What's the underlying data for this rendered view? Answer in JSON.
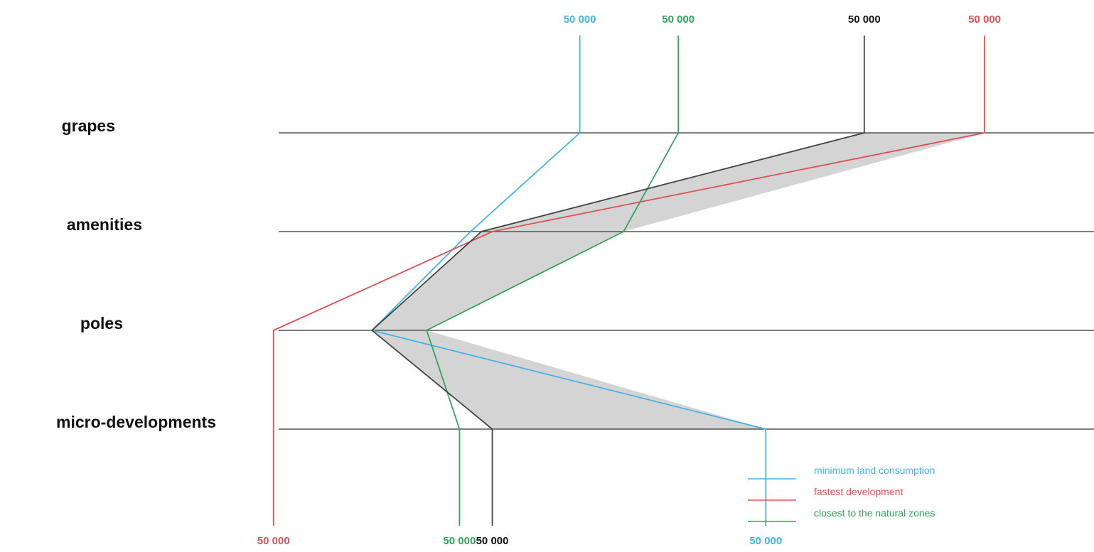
{
  "chart_data": {
    "type": "line",
    "title": "",
    "rows": [
      "grapes",
      "amenities",
      "poles",
      "micro-developments"
    ],
    "series": [
      {
        "name": "minimum land consumption",
        "key": "blue",
        "color": "#3fb6e6",
        "top_label": "50 000",
        "bottom_label": "50 000",
        "values": [
          0.53,
          0.43,
          0.34,
          0.7
        ]
      },
      {
        "name": "fastest development",
        "key": "red",
        "color": "#e05055",
        "top_label": "50 000",
        "bottom_label": "50 000",
        "values": [
          0.9,
          0.45,
          0.25,
          0.25
        ]
      },
      {
        "name": "closest to the natural zones",
        "key": "green",
        "color": "#2fa65a",
        "top_label": "50 000",
        "bottom_label": "50 000",
        "values": [
          0.62,
          0.57,
          0.39,
          0.42
        ]
      },
      {
        "name": "",
        "key": "black",
        "color": "#444444",
        "top_label": "50 000",
        "bottom_label": "50 000",
        "values": [
          0.79,
          0.44,
          0.34,
          0.45
        ]
      }
    ],
    "fill_color": "#d4d4d4",
    "legend_position": "bottom-right"
  }
}
